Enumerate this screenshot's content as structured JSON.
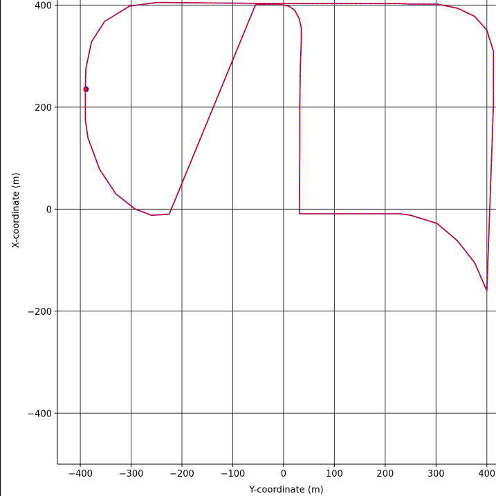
{
  "chart_data": {
    "type": "line",
    "title": "",
    "xlabel": "Y-coordinate (m)",
    "ylabel": "X-coordinate (m)",
    "xlim": [
      -445,
      418
    ],
    "ylim": [
      -500,
      410
    ],
    "grid": true,
    "xticks": [
      -400,
      -300,
      -200,
      -100,
      0,
      100,
      200,
      300,
      400
    ],
    "xtick_labels": [
      "−400",
      "−300",
      "−200",
      "−100",
      "0",
      "100",
      "200",
      "300",
      "400"
    ],
    "yticks": [
      -400,
      -200,
      0,
      200,
      400
    ],
    "ytick_labels": [
      "−400",
      "−200",
      "0",
      "200",
      "400"
    ],
    "series": [
      {
        "color": "#0000ff",
        "style": "solid",
        "x": [
          -390,
          -389,
          -378,
          -352,
          -303,
          -250,
          -225,
          0,
          230,
          248,
          302,
          342,
          376,
          400,
          413,
          413,
          400,
          376,
          342,
          302,
          250,
          230,
          95,
          88,
          65,
          46,
          35,
          31,
          32,
          32,
          33,
          35,
          35,
          31,
          22,
          10,
          -10,
          -30,
          -55,
          -225,
          -260,
          -292,
          -330,
          -362,
          -385,
          -390,
          -390
        ],
        "y": [
          235,
          275,
          328,
          368,
          398,
          405,
          405,
          403,
          403,
          402,
          402,
          394,
          378,
          351,
          310,
          205,
          -160,
          -105,
          -62,
          -28,
          -12,
          -9,
          -9,
          -9,
          -9,
          -9,
          -9,
          -9,
          120,
          200,
          280,
          330,
          355,
          373,
          390,
          398,
          402,
          402,
          401,
          -10,
          -12,
          0,
          30,
          78,
          140,
          175,
          235
        ]
      },
      {
        "color": "#ff0000",
        "style": "dashed",
        "x": [
          -390,
          -389,
          -378,
          -352,
          -303,
          -250,
          -225,
          0,
          230,
          248,
          302,
          342,
          376,
          400,
          413,
          413,
          400,
          376,
          342,
          302,
          250,
          230,
          95,
          88,
          65,
          46,
          35,
          31,
          32,
          32,
          33,
          35,
          35,
          31,
          22,
          10,
          -10,
          -30,
          -55,
          -225,
          -260,
          -292,
          -330,
          -362,
          -385,
          -390,
          -390
        ],
        "y": [
          235,
          275,
          328,
          368,
          398,
          405,
          405,
          403,
          403,
          402,
          402,
          394,
          378,
          351,
          310,
          205,
          -160,
          -105,
          -62,
          -28,
          -12,
          -9,
          -9,
          -9,
          -9,
          -9,
          -9,
          -9,
          120,
          200,
          280,
          330,
          355,
          373,
          390,
          398,
          402,
          402,
          401,
          -10,
          -12,
          0,
          30,
          78,
          140,
          175,
          235
        ]
      }
    ],
    "markers": [
      {
        "x": -390,
        "y": 235,
        "color": "#0000ff"
      },
      {
        "x": -390,
        "y": 235,
        "color": "#ff0000"
      }
    ]
  }
}
